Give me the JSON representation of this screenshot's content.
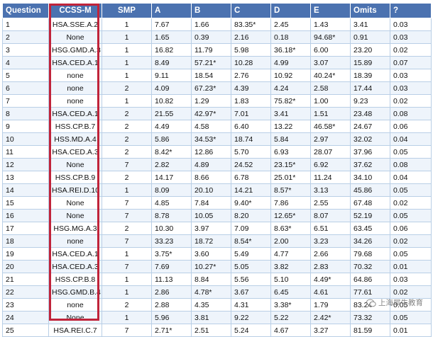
{
  "table": {
    "headers": [
      "Question",
      "CCSS-M",
      "SMP",
      "A",
      "B",
      "C",
      "D",
      "E",
      "Omits",
      "?"
    ],
    "rows": [
      [
        "1",
        "HSA.SSE.A.2",
        "1",
        "7.67",
        "1.66",
        "83.35*",
        "2.45",
        "1.43",
        "3.41",
        "0.03"
      ],
      [
        "2",
        "None",
        "1",
        "1.65",
        "0.39",
        "2.16",
        "0.18",
        "94.68*",
        "0.91",
        "0.03"
      ],
      [
        "3",
        "HSG.GMD.A.3",
        "1",
        "16.82",
        "11.79",
        "5.98",
        "36.18*",
        "6.00",
        "23.20",
        "0.02"
      ],
      [
        "4",
        "HSA.CED.A.1",
        "1",
        "8.49",
        "57.21*",
        "10.28",
        "4.99",
        "3.07",
        "15.89",
        "0.07"
      ],
      [
        "5",
        "none",
        "1",
        "9.11",
        "18.54",
        "2.76",
        "10.92",
        "40.24*",
        "18.39",
        "0.03"
      ],
      [
        "6",
        "none",
        "2",
        "4.09",
        "67.23*",
        "4.39",
        "4.24",
        "2.58",
        "17.44",
        "0.03"
      ],
      [
        "7",
        "none",
        "1",
        "10.82",
        "1.29",
        "1.83",
        "75.82*",
        "1.00",
        "9.23",
        "0.02"
      ],
      [
        "8",
        "HSA.CED.A.1",
        "2",
        "21.55",
        "42.97*",
        "7.01",
        "3.41",
        "1.51",
        "23.48",
        "0.08"
      ],
      [
        "9",
        "HSS.CP.B.7",
        "2",
        "4.49",
        "4.58",
        "6.40",
        "13.22",
        "46.58*",
        "24.67",
        "0.06"
      ],
      [
        "10",
        "HSS.MD.A.4",
        "2",
        "5.86",
        "34.53*",
        "18.74",
        "5.84",
        "2.97",
        "32.02",
        "0.04"
      ],
      [
        "11",
        "HSA.CED.A.3",
        "2",
        "8.42*",
        "12.86",
        "5.70",
        "6.93",
        "28.07",
        "37.96",
        "0.05"
      ],
      [
        "12",
        "None",
        "7",
        "2.82",
        "4.89",
        "24.52",
        "23.15*",
        "6.92",
        "37.62",
        "0.08"
      ],
      [
        "13",
        "HSS.CP.B.9",
        "2",
        "14.17",
        "8.66",
        "6.78",
        "25.01*",
        "11.24",
        "34.10",
        "0.04"
      ],
      [
        "14",
        "HSA.REI.D.10",
        "1",
        "8.09",
        "20.10",
        "14.21",
        "8.57*",
        "3.13",
        "45.86",
        "0.05"
      ],
      [
        "15",
        "None",
        "7",
        "4.85",
        "7.84",
        "9.40*",
        "7.86",
        "2.55",
        "67.48",
        "0.02"
      ],
      [
        "16",
        "None",
        "7",
        "8.78",
        "10.05",
        "8.20",
        "12.65*",
        "8.07",
        "52.19",
        "0.05"
      ],
      [
        "17",
        "HSG.MG.A.3",
        "2",
        "10.30",
        "3.97",
        "7.09",
        "8.63*",
        "6.51",
        "63.45",
        "0.06"
      ],
      [
        "18",
        "none",
        "7",
        "33.23",
        "18.72",
        "8.54*",
        "2.00",
        "3.23",
        "34.26",
        "0.02"
      ],
      [
        "19",
        "HSA.CED.A.1",
        "1",
        "3.75*",
        "3.60",
        "5.49",
        "4.77",
        "2.66",
        "79.68",
        "0.05"
      ],
      [
        "20",
        "HSA.CED.A.3",
        "7",
        "7.69",
        "10.27*",
        "5.05",
        "3.82",
        "2.83",
        "70.32",
        "0.01"
      ],
      [
        "21",
        "HSS.CP.B.8",
        "1",
        "11.13",
        "8.84",
        "5.56",
        "5.10",
        "4.49*",
        "64.86",
        "0.03"
      ],
      [
        "22",
        "HSG.GMD.B.4",
        "1",
        "2.86",
        "4.78*",
        "3.67",
        "6.45",
        "4.61",
        "77.61",
        "0.02"
      ],
      [
        "23",
        "none",
        "2",
        "2.88",
        "4.35",
        "4.31",
        "3.38*",
        "1.79",
        "83.24",
        "0.05"
      ],
      [
        "24",
        "None",
        "1",
        "5.96",
        "3.81",
        "9.22",
        "5.22",
        "2.42*",
        "73.32",
        "0.05"
      ],
      [
        "25",
        "HSA.REI.C.7",
        "7",
        "2.71*",
        "2.51",
        "5.24",
        "4.67",
        "3.27",
        "81.59",
        "0.01"
      ]
    ]
  },
  "watermark": {
    "text": "上海犀牛教育",
    "icon": "wechat-icon"
  },
  "colors": {
    "header_bg": "#4b72b0",
    "highlight_border": "#c0233a",
    "row_alt_bg": "#eef4fb"
  }
}
